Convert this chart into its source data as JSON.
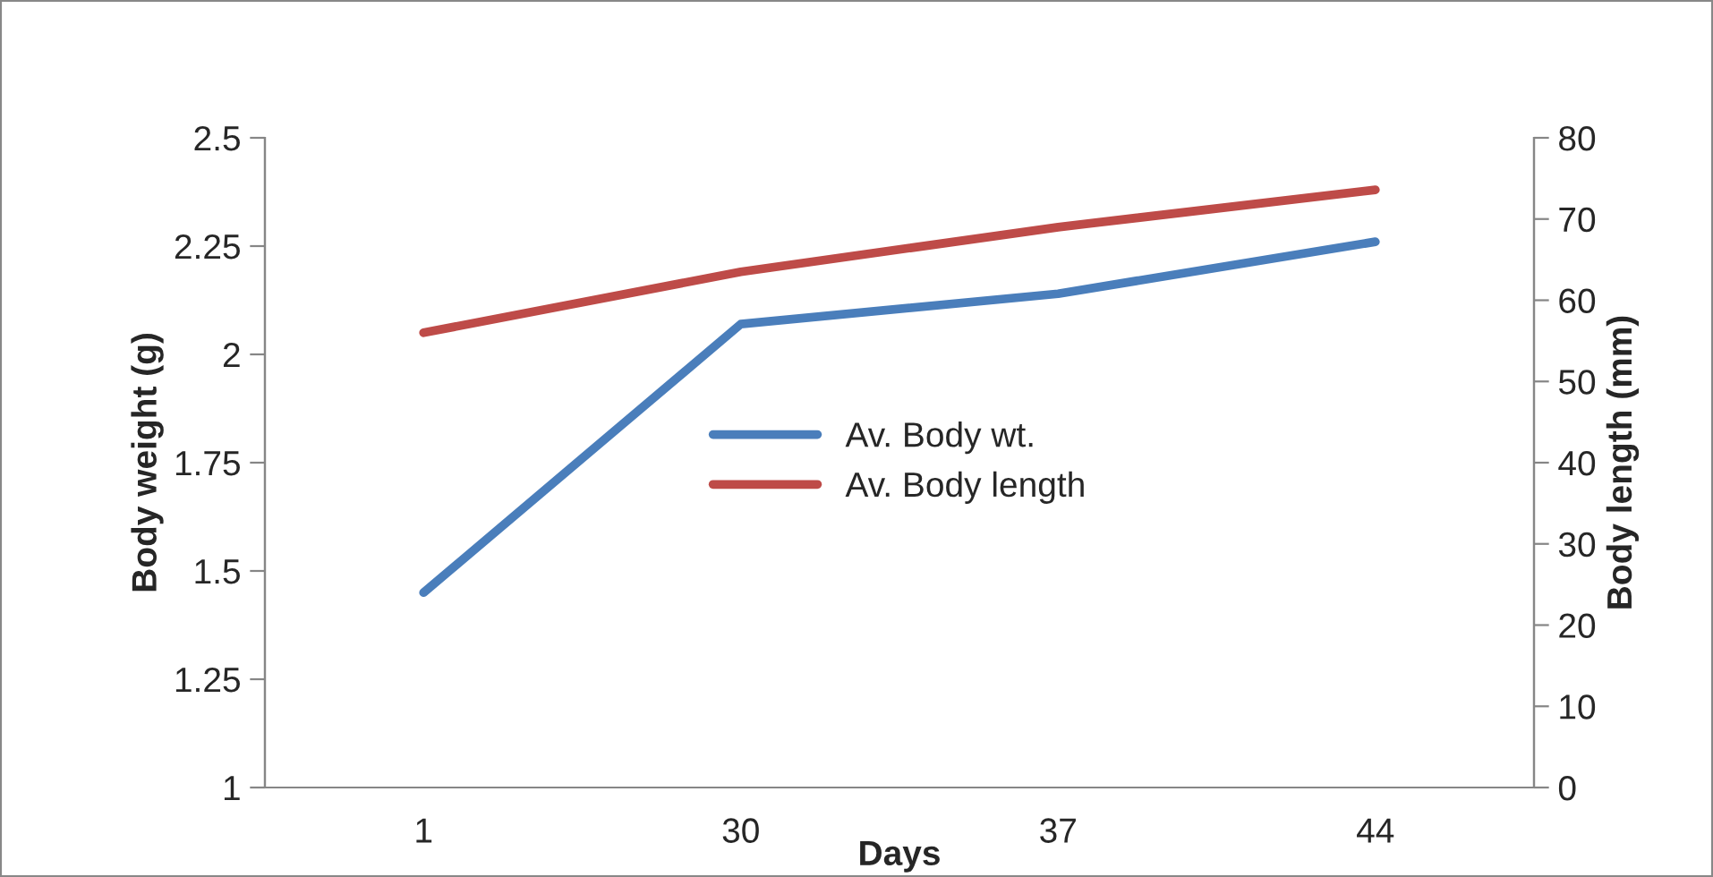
{
  "chart_data": {
    "type": "line",
    "xlabel": "Days",
    "ylabel": "Body weight (g)",
    "y2label": "Body length (mm)",
    "categories": [
      "1",
      "30",
      "37",
      "44"
    ],
    "series": [
      {
        "name": "Av. Body wt.",
        "color": "#4a7ebb",
        "values": [
          1.45,
          2.07,
          2.14,
          2.26
        ]
      },
      {
        "name": "Av. Body length",
        "color": "#be4b48",
        "values": [
          56,
          63.5,
          69,
          73.6
        ],
        "axis": "y2"
      }
    ],
    "ylim": [
      1,
      2.5
    ],
    "yticks": [
      1,
      1.25,
      1.5,
      1.75,
      2,
      2.25,
      2.5
    ],
    "y2lim": [
      0,
      80
    ],
    "y2ticks": [
      0,
      10,
      20,
      30,
      40,
      50,
      60,
      70,
      80
    ],
    "grid": false,
    "legend": "center",
    "marker": "none",
    "line_style": "solid"
  }
}
